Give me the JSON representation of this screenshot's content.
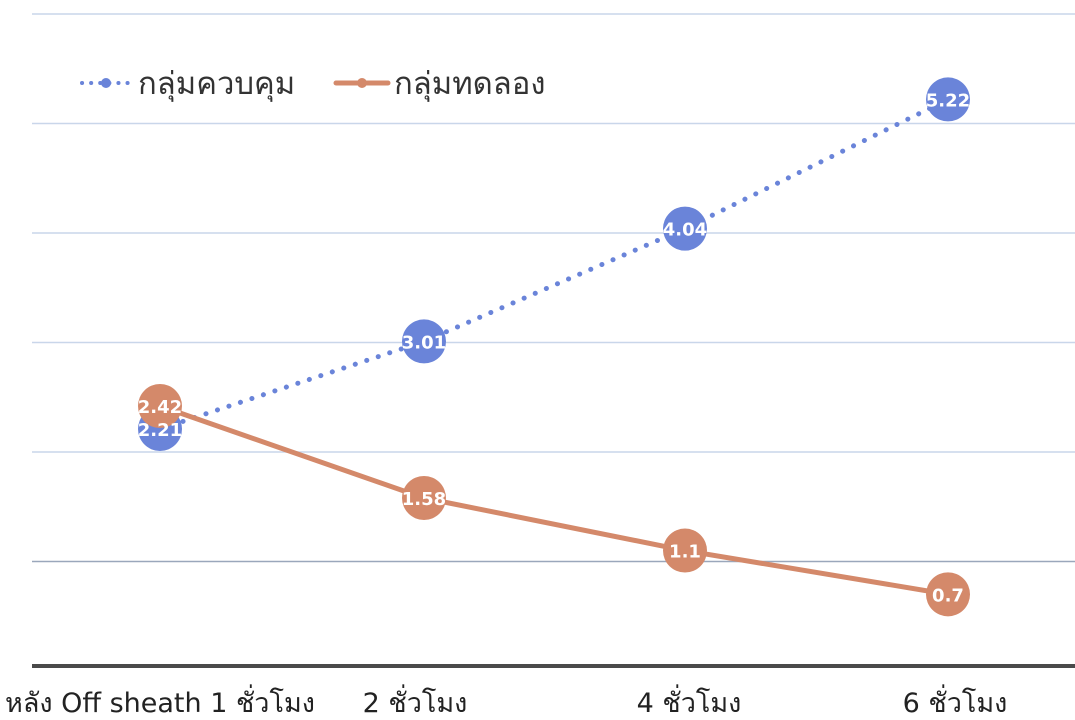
{
  "chart_data": {
    "type": "line",
    "categories": [
      "หลัง Off sheath 1 ชั่วโมง",
      "2 ชั่วโมง",
      "4 ชั่วโมง",
      "6 ชั่วโมง"
    ],
    "series": [
      {
        "name": "กลุ่มควบคุม",
        "values": [
          2.21,
          3.01,
          4.04,
          5.22
        ],
        "color": "#6a84d9",
        "line_style": "dotted",
        "marker": "circle"
      },
      {
        "name": "กลุ่มทดลอง",
        "values": [
          2.42,
          1.58,
          1.1,
          0.7
        ],
        "color": "#d4896a",
        "line_style": "solid",
        "marker": "circle"
      }
    ],
    "data_labels": true,
    "ylim": [
      0,
      6
    ],
    "grid": true,
    "legend_position": "top-left",
    "title": "",
    "xlabel": "",
    "ylabel": ""
  }
}
